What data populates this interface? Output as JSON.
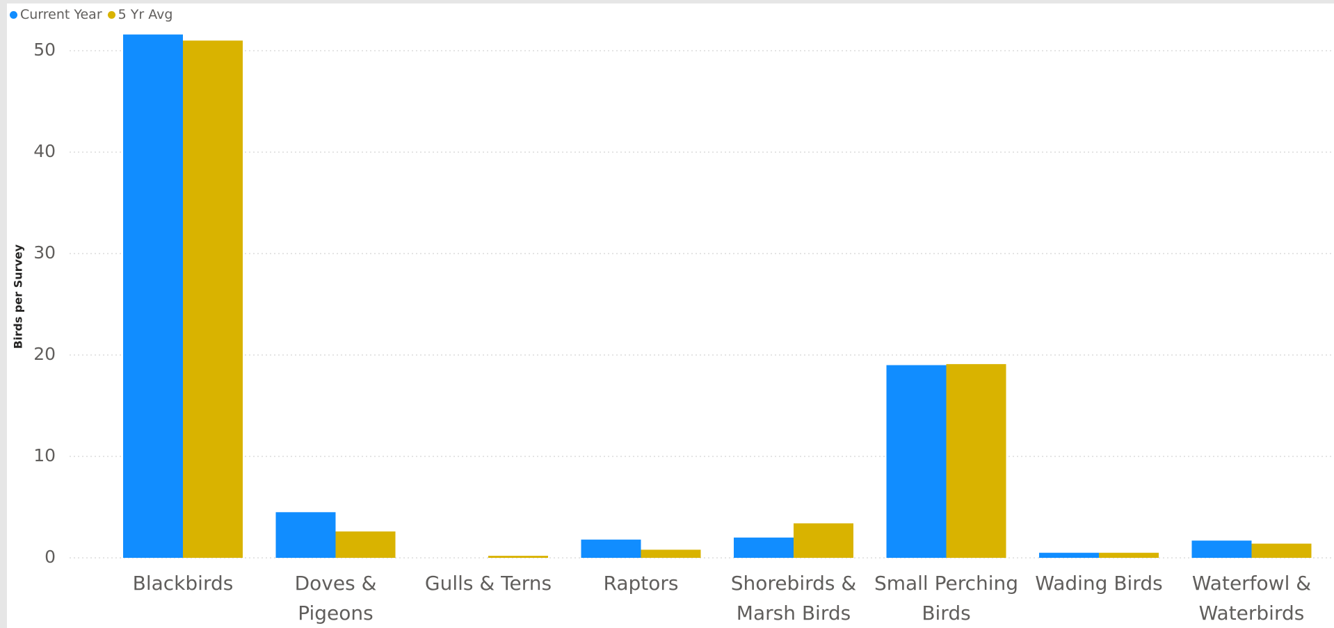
{
  "legend": {
    "items": [
      {
        "label": "Current Year",
        "color": "#118dff"
      },
      {
        "label": "5 Yr Avg",
        "color": "#d9b300"
      }
    ]
  },
  "chart_data": {
    "type": "bar",
    "ylabel": "Birds per Survey",
    "xlabel": "",
    "title": "",
    "ylim": [
      0,
      52
    ],
    "yticks": [
      0,
      10,
      20,
      30,
      40,
      50
    ],
    "grid": true,
    "legend_position": "top-left",
    "categories": [
      [
        "Blackbirds"
      ],
      [
        "Doves &",
        "Pigeons"
      ],
      [
        "Gulls & Terns"
      ],
      [
        "Raptors"
      ],
      [
        "Shorebirds &",
        "Marsh Birds"
      ],
      [
        "Small Perching",
        "Birds"
      ],
      [
        "Wading Birds"
      ],
      [
        "Waterfowl &",
        "Waterbirds"
      ]
    ],
    "series": [
      {
        "name": "Current Year",
        "color": "#118dff",
        "values": [
          51.6,
          4.5,
          0,
          1.8,
          2.0,
          19.0,
          0.5,
          1.7
        ]
      },
      {
        "name": "5 Yr Avg",
        "color": "#d9b300",
        "values": [
          51.0,
          2.6,
          0.2,
          0.8,
          3.4,
          19.1,
          0.5,
          1.4
        ]
      }
    ]
  }
}
